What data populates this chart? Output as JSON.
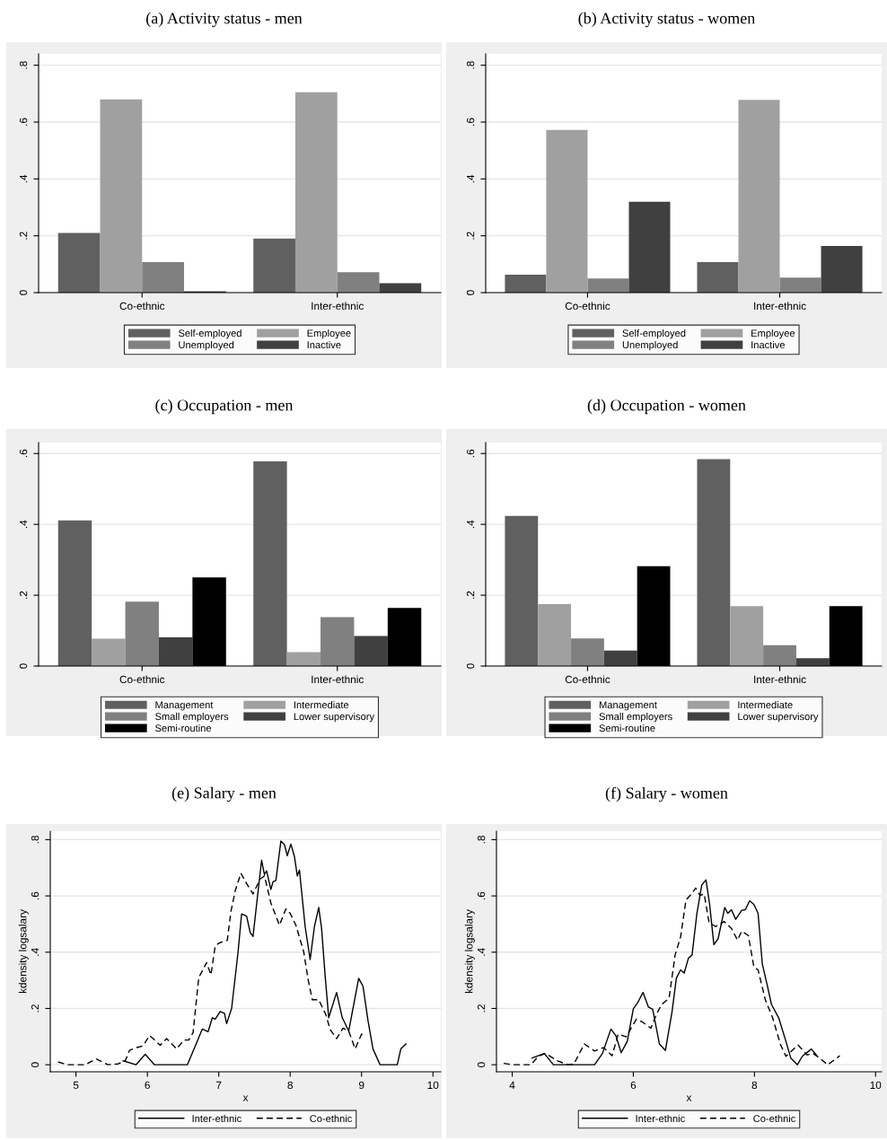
{
  "chart_data": [
    {
      "type": "bar",
      "title": "(a) Activity status - men",
      "categories": [
        "Co-ethnic",
        "Inter-ethnic"
      ],
      "ylim": [
        0,
        0.84
      ],
      "yticks": [
        0,
        {
          "value": 0.2,
          "label": ".2"
        },
        {
          "value": 0.4,
          "label": ".4"
        },
        {
          "value": 0.6,
          "label": ".6"
        },
        {
          "value": 0.8,
          "label": ".8"
        }
      ],
      "grid": "y",
      "legend": "bottom",
      "series": [
        {
          "name": "Self-employed",
          "color": "#606060",
          "values": [
            0.21,
            0.19
          ]
        },
        {
          "name": "Employee",
          "color": "#a0a0a0",
          "values": [
            0.68,
            0.705
          ]
        },
        {
          "name": "Unemployed",
          "color": "#808080",
          "values": [
            0.107,
            0.072
          ]
        },
        {
          "name": "Inactive",
          "color": "#404040",
          "values": [
            0.005,
            0.033
          ]
        }
      ]
    },
    {
      "type": "bar",
      "title": "(b) Activity status - women",
      "categories": [
        "Co-ethnic",
        "Inter-ethnic"
      ],
      "ylim": [
        0,
        0.84
      ],
      "yticks": [
        0,
        {
          "value": 0.2,
          "label": ".2"
        },
        {
          "value": 0.4,
          "label": ".4"
        },
        {
          "value": 0.6,
          "label": ".6"
        },
        {
          "value": 0.8,
          "label": ".8"
        }
      ],
      "grid": "y",
      "legend": "bottom",
      "series": [
        {
          "name": "Self-employed",
          "color": "#606060",
          "values": [
            0.063,
            0.107
          ]
        },
        {
          "name": "Employee",
          "color": "#a0a0a0",
          "values": [
            0.572,
            0.678
          ]
        },
        {
          "name": "Unemployed",
          "color": "#808080",
          "values": [
            0.05,
            0.053
          ]
        },
        {
          "name": "Inactive",
          "color": "#404040",
          "values": [
            0.32,
            0.164
          ]
        }
      ]
    },
    {
      "type": "bar",
      "title": "(c) Occupation - men",
      "categories": [
        "Co-ethnic",
        "Inter-ethnic"
      ],
      "ylim": [
        0,
        0.631
      ],
      "yticks": [
        0,
        {
          "value": 0.2,
          "label": ".2"
        },
        {
          "value": 0.4,
          "label": ".4"
        },
        {
          "value": 0.6,
          "label": ".6"
        }
      ],
      "grid": "y",
      "legend": "bottom",
      "series": [
        {
          "name": "Management",
          "color": "#606060",
          "values": [
            0.411,
            0.578
          ]
        },
        {
          "name": "Intermediate",
          "color": "#a0a0a0",
          "values": [
            0.077,
            0.039
          ]
        },
        {
          "name": "Small employers",
          "color": "#808080",
          "values": [
            0.182,
            0.138
          ]
        },
        {
          "name": "Lower supervisory",
          "color": "#404040",
          "values": [
            0.081,
            0.085
          ]
        },
        {
          "name": "Semi-routine",
          "color": "#000000",
          "values": [
            0.25,
            0.164
          ]
        }
      ]
    },
    {
      "type": "bar",
      "title": "(d) Occupation - women",
      "categories": [
        "Co-ethnic",
        "Inter-ethnic"
      ],
      "ylim": [
        0,
        0.631
      ],
      "yticks": [
        0,
        {
          "value": 0.2,
          "label": ".2"
        },
        {
          "value": 0.4,
          "label": ".4"
        },
        {
          "value": 0.6,
          "label": ".6"
        }
      ],
      "grid": "y",
      "legend": "bottom",
      "series": [
        {
          "name": "Management",
          "color": "#606060",
          "values": [
            0.424,
            0.584
          ]
        },
        {
          "name": "Intermediate",
          "color": "#a0a0a0",
          "values": [
            0.175,
            0.169
          ]
        },
        {
          "name": "Small employers",
          "color": "#808080",
          "values": [
            0.078,
            0.059
          ]
        },
        {
          "name": "Lower supervisory",
          "color": "#404040",
          "values": [
            0.044,
            0.022
          ]
        },
        {
          "name": "Semi-routine",
          "color": "#000000",
          "values": [
            0.282,
            0.169
          ]
        }
      ]
    },
    {
      "type": "line",
      "title": "(e) Salary - men",
      "xlabel": "x",
      "ylabel": "kdensity logsalary",
      "xlim": [
        4.64,
        10.11
      ],
      "xticks": [
        5,
        6,
        7,
        8,
        9,
        10
      ],
      "ylim": [
        -0.025,
        0.83
      ],
      "yticks": [
        0,
        {
          "value": 0.2,
          "label": ".2"
        },
        {
          "value": 0.4,
          "label": ".4"
        },
        {
          "value": 0.6,
          "label": ".6"
        },
        {
          "value": 0.8,
          "label": ".8"
        }
      ],
      "grid": "y",
      "legend": "bottom",
      "series": [
        {
          "name": "Inter-ethnic",
          "color": "#000000",
          "line_style": "solid",
          "x": [
            5.66,
            5.84,
            5.97,
            6.1,
            6.56,
            6.68,
            6.77,
            6.85,
            6.91,
            6.95,
            7.02,
            7.08,
            7.11,
            7.18,
            7.27,
            7.32,
            7.39,
            7.44,
            7.48,
            7.53,
            7.6,
            7.64,
            7.67,
            7.73,
            7.76,
            7.8,
            7.87,
            7.92,
            7.96,
            8.01,
            8.06,
            8.1,
            8.13,
            8.21,
            8.28,
            8.34,
            8.4,
            8.44,
            8.49,
            8.54,
            8.65,
            8.73,
            8.82,
            8.96,
            9.02,
            9.09,
            9.16,
            9.26,
            9.5,
            9.55,
            9.62
          ],
          "values": [
            0.014,
            0,
            0.037,
            0,
            0,
            0.072,
            0.127,
            0.117,
            0.167,
            0.162,
            0.189,
            0.183,
            0.146,
            0.2,
            0.4,
            0.536,
            0.528,
            0.47,
            0.456,
            0.57,
            0.727,
            0.676,
            0.689,
            0.623,
            0.65,
            0.655,
            0.795,
            0.782,
            0.743,
            0.784,
            0.74,
            0.671,
            0.692,
            0.491,
            0.374,
            0.491,
            0.559,
            0.485,
            0.316,
            0.167,
            0.257,
            0.167,
            0.12,
            0.307,
            0.279,
            0.157,
            0.056,
            0,
            0,
            0.056,
            0.074
          ]
        },
        {
          "name": "Co-ethnic",
          "color": "#000000",
          "line_style": "dashed",
          "x": [
            4.75,
            4.88,
            5.13,
            5.28,
            5.45,
            5.59,
            5.69,
            5.75,
            5.85,
            5.94,
            6.03,
            6.08,
            6.18,
            6.27,
            6.41,
            6.51,
            6.58,
            6.64,
            6.72,
            6.83,
            6.89,
            6.95,
            7.0,
            7.06,
            7.12,
            7.17,
            7.23,
            7.31,
            7.39,
            7.48,
            7.58,
            7.64,
            7.73,
            7.85,
            7.94,
            8.0,
            8.08,
            8.19,
            8.25,
            8.31,
            8.4,
            8.5,
            8.56,
            8.65,
            8.74,
            8.82,
            8.91,
            9.0,
            9.05
          ],
          "values": [
            0.01,
            0,
            0,
            0.021,
            0,
            0.003,
            0.014,
            0.051,
            0.061,
            0.067,
            0.104,
            0.093,
            0.069,
            0.093,
            0.056,
            0.088,
            0.088,
            0.114,
            0.31,
            0.363,
            0.319,
            0.422,
            0.432,
            0.438,
            0.443,
            0.544,
            0.618,
            0.681,
            0.644,
            0.607,
            0.66,
            0.671,
            0.575,
            0.496,
            0.554,
            0.538,
            0.496,
            0.401,
            0.305,
            0.231,
            0.231,
            0.178,
            0.125,
            0.093,
            0.13,
            0.12,
            0.056,
            0.109,
            0.099
          ]
        }
      ]
    },
    {
      "type": "line",
      "title": "(f) Salary - women",
      "xlabel": "x",
      "ylabel": "kdensity logsalary",
      "xlim": [
        3.74,
        10.1
      ],
      "xticks": [
        4,
        6,
        8,
        10
      ],
      "ylim": [
        -0.025,
        0.83
      ],
      "yticks": [
        0,
        {
          "value": 0.2,
          "label": ".2"
        },
        {
          "value": 0.4,
          "label": ".4"
        },
        {
          "value": 0.6,
          "label": ".6"
        },
        {
          "value": 0.8,
          "label": ".8"
        }
      ],
      "grid": "y",
      "legend": "bottom",
      "series": [
        {
          "name": "Inter-ethnic",
          "color": "#000000",
          "line_style": "solid",
          "x": [
            4.33,
            4.53,
            4.68,
            5.36,
            5.49,
            5.63,
            5.71,
            5.8,
            5.9,
            6.0,
            6.07,
            6.16,
            6.25,
            6.32,
            6.43,
            6.53,
            6.64,
            6.71,
            6.78,
            6.84,
            6.91,
            6.97,
            7.05,
            7.13,
            7.2,
            7.26,
            7.33,
            7.4,
            7.51,
            7.56,
            7.62,
            7.69,
            7.79,
            7.85,
            7.92,
            7.99,
            8.06,
            8.13,
            8.21,
            8.28,
            8.4,
            8.52,
            8.6,
            8.71,
            8.79,
            8.94,
            9.04
          ],
          "values": [
            0.024,
            0.04,
            0,
            0,
            0.04,
            0.127,
            0.104,
            0.043,
            0.083,
            0.199,
            0.22,
            0.257,
            0.205,
            0.197,
            0.074,
            0.051,
            0.189,
            0.307,
            0.337,
            0.326,
            0.379,
            0.39,
            0.538,
            0.639,
            0.657,
            0.57,
            0.427,
            0.448,
            0.559,
            0.538,
            0.551,
            0.517,
            0.549,
            0.551,
            0.583,
            0.57,
            0.538,
            0.358,
            0.284,
            0.215,
            0.167,
            0.083,
            0.024,
            0,
            0.03,
            0.056,
            0.03
          ]
        },
        {
          "name": "Co-ethnic",
          "color": "#000000",
          "line_style": "dashed",
          "x": [
            3.86,
            4.01,
            4.31,
            4.43,
            4.55,
            4.75,
            4.92,
            5.02,
            5.19,
            5.36,
            5.51,
            5.65,
            5.75,
            5.88,
            6.05,
            6.15,
            6.29,
            6.39,
            6.47,
            6.59,
            6.69,
            6.78,
            6.87,
            6.96,
            7.03,
            7.1,
            7.17,
            7.25,
            7.36,
            7.5,
            7.62,
            7.72,
            7.79,
            7.9,
            7.99,
            8.06,
            8.18,
            8.3,
            8.43,
            8.52,
            8.72,
            8.87,
            8.97,
            9.09,
            9.21,
            9.41
          ],
          "values": [
            0.005,
            0,
            0,
            0.03,
            0.04,
            0.014,
            0,
            0.003,
            0.074,
            0.049,
            0.061,
            0.032,
            0.109,
            0.099,
            0.162,
            0.152,
            0.13,
            0.183,
            0.215,
            0.236,
            0.39,
            0.454,
            0.586,
            0.607,
            0.628,
            0.602,
            0.607,
            0.506,
            0.491,
            0.509,
            0.485,
            0.443,
            0.475,
            0.459,
            0.348,
            0.337,
            0.231,
            0.167,
            0.072,
            0.03,
            0.07,
            0.035,
            0.04,
            0.021,
            0,
            0.032
          ]
        }
      ]
    }
  ]
}
